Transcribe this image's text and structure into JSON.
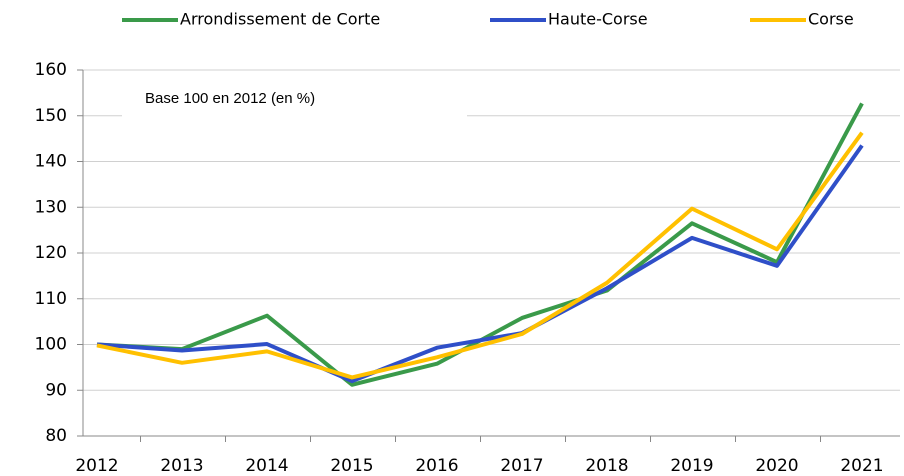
{
  "chart_data": {
    "type": "line",
    "annotation": "Base 100 en 2012 (en %)",
    "categories": [
      "2012",
      "2013",
      "2014",
      "2015",
      "2016",
      "2017",
      "2018",
      "2019",
      "2020",
      "2021"
    ],
    "series": [
      {
        "name": "Arrondissement de Corte",
        "color": "#3a9a4a",
        "values": [
          100,
          99,
          106.3,
          91.2,
          95.8,
          105.8,
          111.8,
          126.5,
          118,
          152.7
        ]
      },
      {
        "name": "Haute-Corse",
        "color": "#2f4fc8",
        "values": [
          100,
          98.7,
          100.1,
          92,
          99.3,
          102.5,
          112.3,
          123.3,
          117.2,
          143.5
        ]
      },
      {
        "name": "Corse",
        "color": "#ffc000",
        "values": [
          99.8,
          96,
          98.5,
          92.8,
          97.2,
          102.3,
          113.5,
          129.7,
          120.8,
          146.3
        ]
      }
    ],
    "ylim": [
      80,
      160
    ],
    "yticks": [
      80,
      90,
      100,
      110,
      120,
      130,
      140,
      150,
      160
    ],
    "grid": true
  }
}
